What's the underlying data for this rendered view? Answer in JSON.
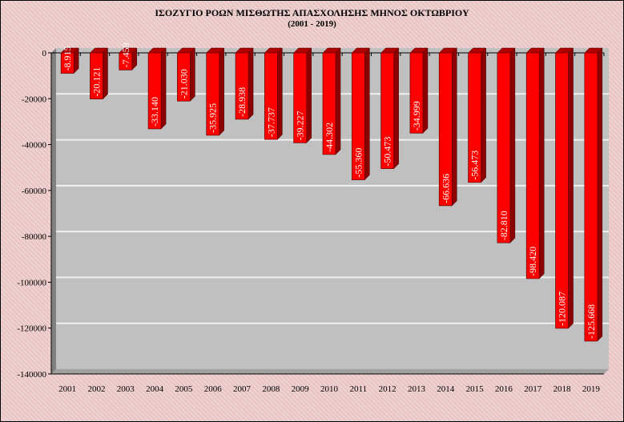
{
  "chart_data": {
    "type": "bar",
    "title": "ΙΣΟΖΥΓΙΟ ΡΟΩΝ ΜΙΣΘΩΤΗΣ ΑΠΑΣΧΟΛΗΣΗΣ ΜΗΝΟΣ  ΟΚΤΩΒΡΙΟΥ",
    "subtitle": "(2001 - 2019)",
    "xlabel": "",
    "ylabel": "",
    "ylim": [
      -140000,
      0
    ],
    "yticks": [
      0,
      -20000,
      -40000,
      -60000,
      -80000,
      -100000,
      -120000,
      -140000
    ],
    "grid": true,
    "categories": [
      "2001",
      "2002",
      "2003",
      "2004",
      "2005",
      "2006",
      "2007",
      "2008",
      "2009",
      "2010",
      "2011",
      "2012",
      "2013",
      "2014",
      "2015",
      "2016",
      "2017",
      "2018",
      "2019"
    ],
    "values": [
      -8915,
      -20121,
      -7459,
      -33140,
      -21030,
      -35925,
      -28938,
      -37737,
      -39227,
      -44302,
      -55360,
      -50473,
      -34999,
      -66636,
      -56473,
      -82810,
      -98420,
      -120087,
      -125668
    ],
    "labels": [
      "-8.915",
      "-20.121",
      "-7.459",
      "-33.140",
      "-21.030",
      "-35.925",
      "-28.938",
      "-37.737",
      "-39.227",
      "-44.302",
      "-55.360",
      "-50.473",
      "-34.999",
      "-66.636",
      "-56.473",
      "-82.810",
      "-98.420",
      "-120.087",
      "-125.668"
    ],
    "colors": {
      "bar": "#ff0000",
      "bar_side": "#8b0000",
      "plot_bg": "#c0c0c0",
      "wall": "#808080"
    }
  }
}
